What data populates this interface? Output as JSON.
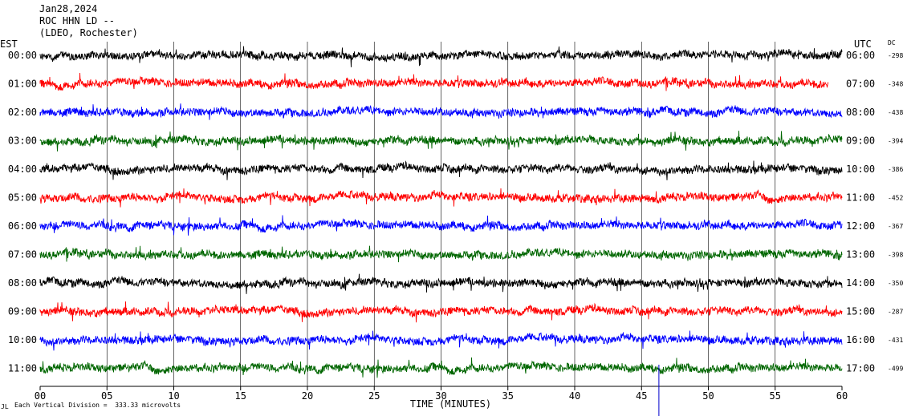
{
  "header": {
    "date": "Jan28,2024",
    "station": "ROC HHN LD --",
    "network": "(LDEO, Rochester)"
  },
  "axis_labels": {
    "left_zone": "EST",
    "right_zone": "UTC",
    "dc_header": "DC"
  },
  "footer": {
    "scale_note": "Each Vertical Division =  333.33 microvolts",
    "corner_mark": "JL"
  },
  "colors": {
    "trace_cycle": [
      "#000000",
      "#ff0000",
      "#0000ff",
      "#006600"
    ],
    "gridline": "#000000",
    "event_marker": "#0000cc"
  },
  "chart_data": {
    "type": "line",
    "title": "",
    "xlabel": "TIME (MINUTES)",
    "ylabel": "",
    "xlim": [
      0,
      60
    ],
    "x_ticks": [
      0,
      5,
      10,
      15,
      20,
      25,
      30,
      35,
      40,
      45,
      50,
      55,
      60
    ],
    "x_tick_labels": [
      "00",
      "05",
      "10",
      "15",
      "20",
      "25",
      "30",
      "35",
      "40",
      "45",
      "50",
      "55",
      "60"
    ],
    "grid": "vertical every 5 minutes",
    "event_marker_minute": 46.3,
    "rows": [
      {
        "est": "00:00",
        "utc": "06:00",
        "dc": "-298",
        "color": "#000000",
        "end_minute": 60
      },
      {
        "est": "01:00",
        "utc": "07:00",
        "dc": "-348",
        "color": "#ff0000",
        "end_minute": 59
      },
      {
        "est": "02:00",
        "utc": "08:00",
        "dc": "-438",
        "color": "#0000ff",
        "end_minute": 60
      },
      {
        "est": "03:00",
        "utc": "09:00",
        "dc": "-394",
        "color": "#006600",
        "end_minute": 60
      },
      {
        "est": "04:00",
        "utc": "10:00",
        "dc": "-386",
        "color": "#000000",
        "end_minute": 60
      },
      {
        "est": "05:00",
        "utc": "11:00",
        "dc": "-452",
        "color": "#ff0000",
        "end_minute": 60
      },
      {
        "est": "06:00",
        "utc": "12:00",
        "dc": "-367",
        "color": "#0000ff",
        "end_minute": 60
      },
      {
        "est": "07:00",
        "utc": "13:00",
        "dc": "-398",
        "color": "#006600",
        "end_minute": 60
      },
      {
        "est": "08:00",
        "utc": "14:00",
        "dc": "-350",
        "color": "#000000",
        "end_minute": 60
      },
      {
        "est": "09:00",
        "utc": "15:00",
        "dc": "-287",
        "color": "#ff0000",
        "end_minute": 60
      },
      {
        "est": "10:00",
        "utc": "16:00",
        "dc": "-431",
        "color": "#0000ff",
        "end_minute": 60
      },
      {
        "est": "11:00",
        "utc": "17:00",
        "dc": "-499",
        "color": "#006600",
        "end_minute": 60
      }
    ]
  }
}
